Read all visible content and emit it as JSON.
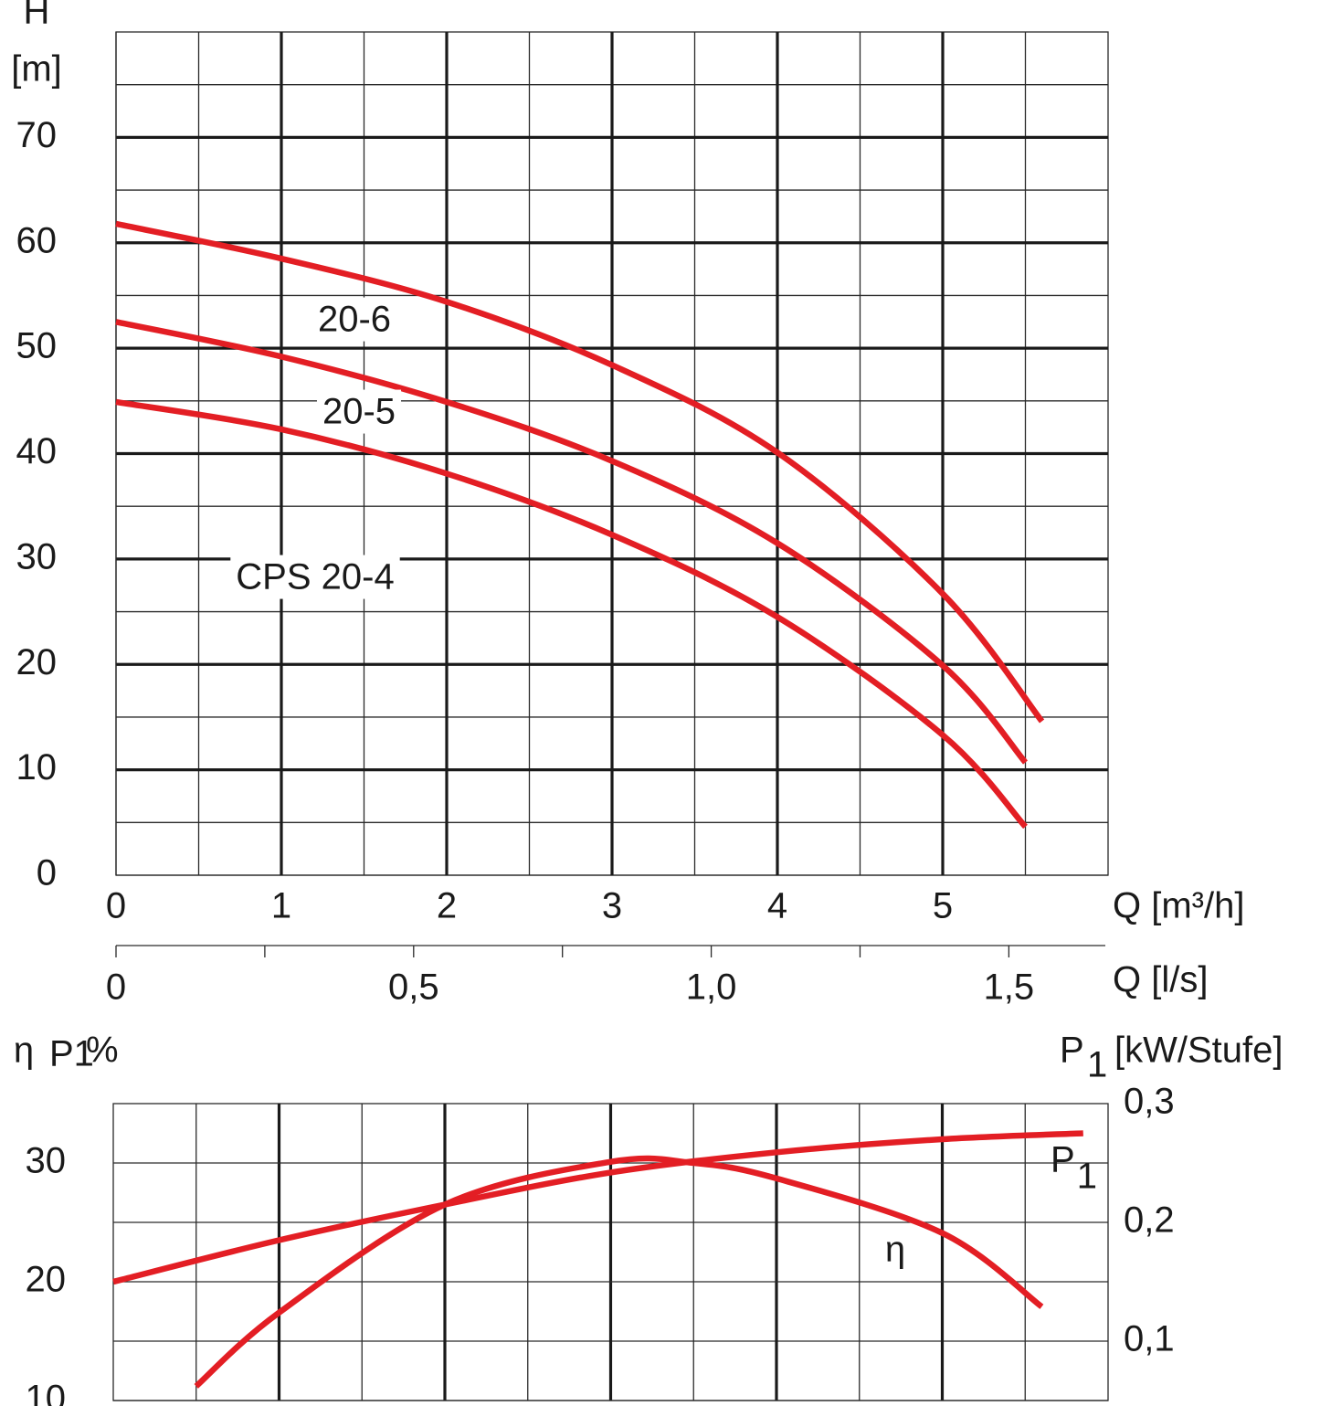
{
  "chart_data": [
    {
      "type": "line",
      "ylabel": "H",
      "yunit": "[m]",
      "xlabel": "Q [m³/h]",
      "x2label": "Q [l/s]",
      "series": [
        {
          "name": "20-6",
          "color": "#e31e24",
          "x": [
            0,
            1,
            2,
            3,
            4,
            5,
            5.6
          ],
          "values": [
            61.8,
            58.5,
            54.4,
            48.4,
            40.1,
            26.7,
            14.6
          ]
        },
        {
          "name": "20-5",
          "color": "#e31e24",
          "x": [
            0,
            1,
            2,
            3,
            4,
            5,
            5.5
          ],
          "values": [
            52.5,
            49.2,
            44.9,
            39.3,
            31.5,
            19.9,
            10.7
          ]
        },
        {
          "name": "CPS 20-4",
          "color": "#e31e24",
          "x": [
            0,
            1,
            2,
            3,
            4,
            5,
            5.5
          ],
          "values": [
            44.9,
            42.3,
            38.1,
            32.3,
            24.5,
            13.3,
            4.6
          ]
        }
      ],
      "xlim": [
        0,
        6
      ],
      "xticks": [
        0,
        1,
        2,
        3,
        4,
        5
      ],
      "xminorgrid": [
        0.5,
        1.5,
        2.5,
        3.5,
        4.5,
        5.5
      ],
      "ylim": [
        0,
        80
      ],
      "yticks": [
        0,
        10,
        20,
        30,
        40,
        50,
        60,
        70
      ],
      "yminorgrid": [
        5,
        15,
        25,
        35,
        45,
        55,
        65,
        75
      ],
      "ygrid_style": "bold",
      "xgrid_style": "bold",
      "x2lim": [
        0,
        1.6667
      ],
      "x2ticks": [
        0,
        {
          "value": 0.5,
          "label": "0,5"
        },
        {
          "value": 1,
          "label": "1,0"
        },
        {
          "value": 1.5,
          "label": "1,5"
        }
      ],
      "x2minorticks": [
        0.25,
        0.75,
        1.25
      ],
      "grid": true
    },
    {
      "type": "line",
      "ylabel": "η",
      "ylabel_sub": "P1",
      "yunit": "%",
      "y2label": "P",
      "y2label_sub": "1",
      "y2unit": "[kW/Stufe]",
      "series": [
        {
          "name": "η",
          "color": "#e31e24",
          "x": [
            0.5,
            1,
            2,
            3,
            3.5,
            4,
            5,
            5.6
          ],
          "values": [
            11.2,
            17.4,
            26.5,
            30.1,
            30,
            28.7,
            24.1,
            17.9
          ]
        },
        {
          "name": "P",
          "name_sub": "1",
          "color": "#e31e24",
          "axis": "y2",
          "x": [
            0,
            1,
            2,
            3,
            4,
            5,
            5.85
          ],
          "values": [
            0.15,
            0.185,
            0.215,
            0.242,
            0.259,
            0.27,
            0.275
          ]
        }
      ],
      "xlim": [
        0,
        6
      ],
      "xgrid": [
        1,
        2,
        3,
        4,
        5
      ],
      "xminorgrid": [
        0.5,
        1.5,
        2.5,
        3.5,
        4.5,
        5.5
      ],
      "ylim": [
        10,
        35
      ],
      "yticks": [
        10,
        20,
        30
      ],
      "yminorgrid": [
        15,
        25
      ],
      "ygrid_style": "thin",
      "xgrid_style": "bold",
      "y2lim": [
        0.05,
        0.3
      ],
      "y2ticks": [
        {
          "value": 0.1,
          "label": "0,1"
        },
        {
          "value": 0.2,
          "label": "0,2"
        },
        {
          "value": 0.3,
          "label": "0,3"
        }
      ],
      "grid": true
    }
  ]
}
